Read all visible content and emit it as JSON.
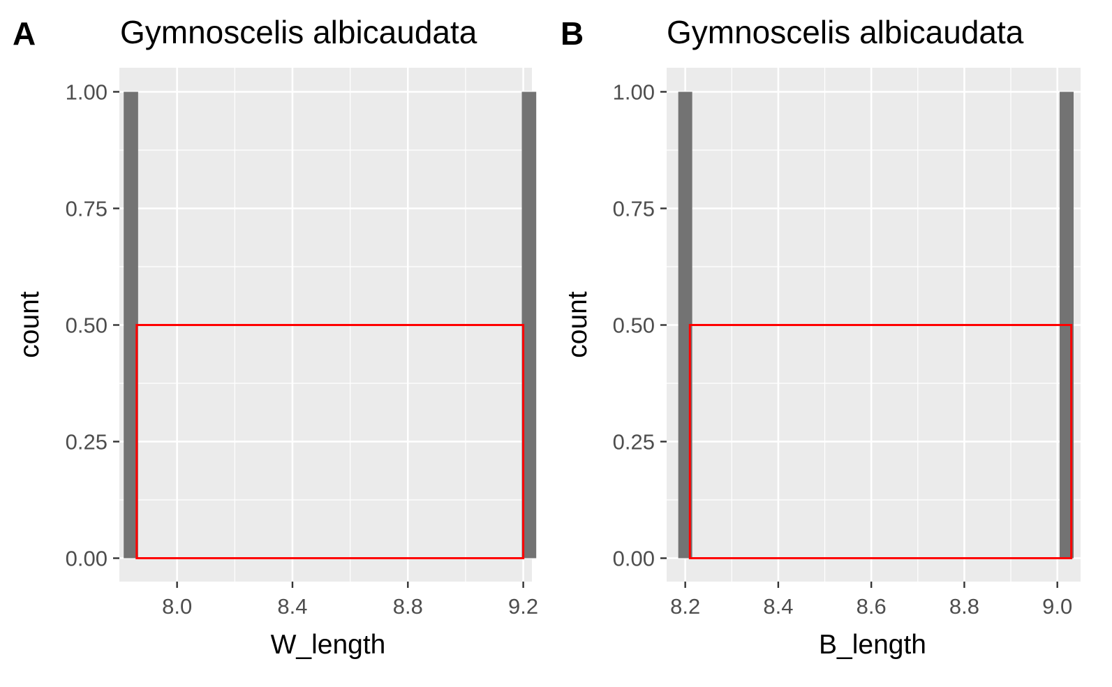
{
  "chart_data": [
    {
      "panel_label": "A",
      "type": "bar",
      "title": "Gymnoscelis albicaudata",
      "xlabel": "W_length",
      "ylabel": "count",
      "xlim": [
        7.8,
        9.23
      ],
      "ylim": [
        0,
        1
      ],
      "x_ticks": [
        8.0,
        8.4,
        8.8,
        9.2
      ],
      "x_tick_labels": [
        "8.0",
        "8.4",
        "8.8",
        "9.2"
      ],
      "y_ticks": [
        0,
        0.25,
        0.5,
        0.75,
        1.0
      ],
      "y_tick_labels": [
        "0.00",
        "0.25",
        "0.50",
        "0.75",
        "1.00"
      ],
      "grid": true,
      "bars": [
        {
          "x": 7.84,
          "count": 1
        },
        {
          "x": 9.22,
          "count": 1
        }
      ],
      "bar_width": 0.05,
      "highlight_box": {
        "x0": 7.86,
        "x1": 9.2,
        "y0": 0,
        "y1": 0.5,
        "color": "#ff0000"
      },
      "bar_color": "#737373",
      "panel_bg": "#ebebeb"
    },
    {
      "panel_label": "B",
      "type": "bar",
      "title": "Gymnoscelis albicaudata",
      "xlabel": "B_length",
      "ylabel": "count",
      "xlim": [
        8.16,
        9.05
      ],
      "ylim": [
        0,
        1
      ],
      "x_ticks": [
        8.2,
        8.4,
        8.6,
        8.8,
        9.0
      ],
      "x_tick_labels": [
        "8.2",
        "8.4",
        "8.6",
        "8.8",
        "9.0"
      ],
      "y_ticks": [
        0,
        0.25,
        0.5,
        0.75,
        1.0
      ],
      "y_tick_labels": [
        "0.00",
        "0.25",
        "0.50",
        "0.75",
        "1.00"
      ],
      "grid": true,
      "bars": [
        {
          "x": 8.2,
          "count": 1
        },
        {
          "x": 9.02,
          "count": 1
        }
      ],
      "bar_width": 0.03,
      "highlight_box": {
        "x0": 8.21,
        "x1": 9.03,
        "y0": 0,
        "y1": 0.5,
        "color": "#ff0000"
      },
      "bar_color": "#737373",
      "panel_bg": "#ebebeb"
    }
  ]
}
